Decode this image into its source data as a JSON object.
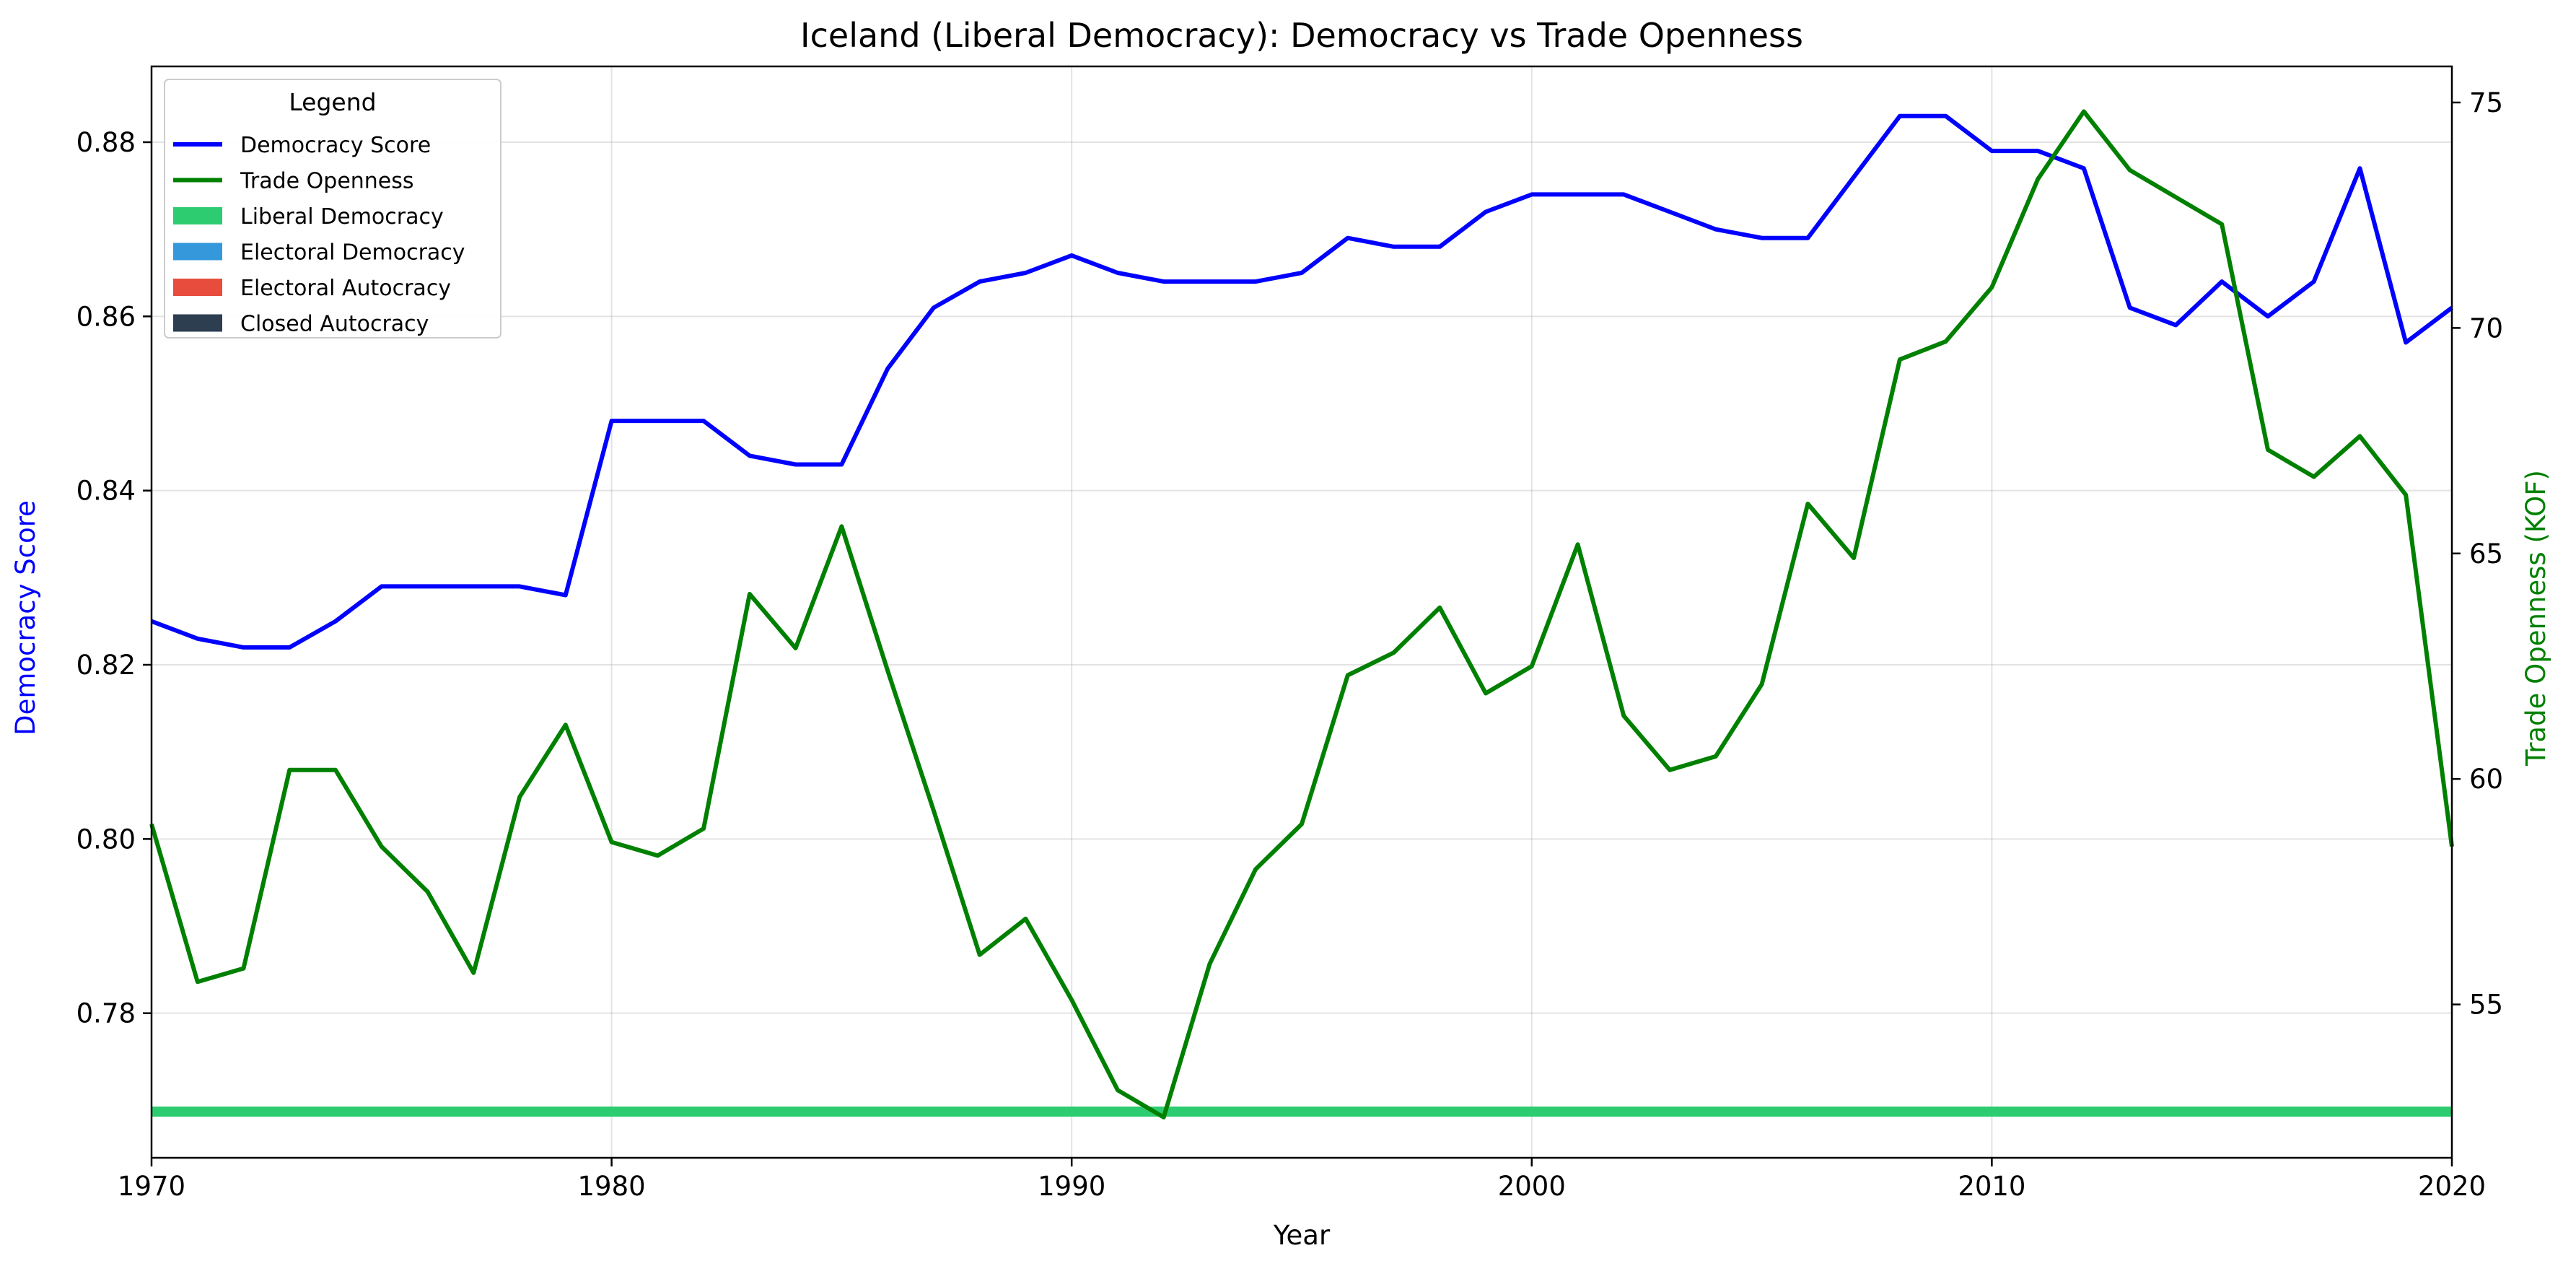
{
  "chart_data": {
    "type": "line",
    "title": "Iceland (Liberal Democracy): Democracy vs Trade Openness",
    "xlabel": "Year",
    "ylabel_left": "Democracy Score",
    "ylabel_right": "Trade Openness (KOF)",
    "xlim": [
      1970,
      2020
    ],
    "ylim_left": [
      0.7634,
      0.8887
    ],
    "ylim_right": [
      51.6,
      75.8
    ],
    "x_ticks": [
      1970,
      1980,
      1990,
      2000,
      2010,
      2020
    ],
    "y_left_ticks": [
      0.78,
      0.8,
      0.82,
      0.84,
      0.86,
      0.88
    ],
    "y_left_tick_labels": [
      "0.78",
      "0.80",
      "0.82",
      "0.84",
      "0.86",
      "0.88"
    ],
    "y_right_ticks": [
      55,
      60,
      65,
      70,
      75
    ],
    "y_right_tick_labels": [
      "55",
      "60",
      "65",
      "70",
      "75"
    ],
    "grid": true,
    "legend_placement": "top-left",
    "legend_title": "Legend",
    "x": [
      1970,
      1971,
      1972,
      1973,
      1974,
      1975,
      1976,
      1977,
      1978,
      1979,
      1980,
      1981,
      1982,
      1983,
      1984,
      1985,
      1986,
      1987,
      1988,
      1989,
      1990,
      1991,
      1992,
      1993,
      1994,
      1995,
      1996,
      1997,
      1998,
      1999,
      2000,
      2001,
      2002,
      2003,
      2004,
      2005,
      2006,
      2007,
      2008,
      2009,
      2010,
      2011,
      2012,
      2013,
      2014,
      2015,
      2016,
      2017,
      2018,
      2019,
      2020
    ],
    "series": [
      {
        "name": "Democracy Score",
        "axis": "left",
        "color": "#0000ff",
        "values": [
          0.825,
          0.823,
          0.822,
          0.822,
          0.825,
          0.829,
          0.829,
          0.829,
          0.829,
          0.828,
          0.848,
          0.848,
          0.848,
          0.844,
          0.843,
          0.843,
          0.854,
          0.861,
          0.864,
          0.865,
          0.867,
          0.865,
          0.864,
          0.864,
          0.864,
          0.865,
          0.869,
          0.868,
          0.868,
          0.872,
          0.874,
          0.874,
          0.874,
          0.872,
          0.87,
          0.869,
          0.869,
          0.876,
          0.883,
          0.883,
          0.879,
          0.879,
          0.877,
          0.861,
          0.859,
          0.864,
          0.86,
          0.864,
          0.877,
          0.857,
          0.861
        ]
      },
      {
        "name": "Trade Openness",
        "axis": "right",
        "color": "#008000",
        "values": [
          59.0,
          55.5,
          55.8,
          60.2,
          60.2,
          58.5,
          57.5,
          55.7,
          59.6,
          61.2,
          58.6,
          58.3,
          58.9,
          64.1,
          62.9,
          65.6,
          62.4,
          59.3,
          56.1,
          56.9,
          55.1,
          53.1,
          52.5,
          55.9,
          58.0,
          59.0,
          62.3,
          62.8,
          63.8,
          61.9,
          62.5,
          65.2,
          61.4,
          60.2,
          60.5,
          62.1,
          66.1,
          64.9,
          69.3,
          69.7,
          70.9,
          73.3,
          74.8,
          73.5,
          72.9,
          72.3,
          67.3,
          66.7,
          67.6,
          66.3,
          58.5
        ]
      }
    ],
    "regime_band": {
      "name": "Liberal Democracy",
      "color": "#2ecc71",
      "x_range": [
        1970,
        2020
      ]
    },
    "legend_entries": [
      {
        "label": "Democracy Score",
        "kind": "line",
        "color": "#0000ff"
      },
      {
        "label": "Trade Openness",
        "kind": "line",
        "color": "#008000"
      },
      {
        "label": "Liberal Democracy",
        "kind": "patch",
        "color": "#2ecc71"
      },
      {
        "label": "Electoral Democracy",
        "kind": "patch",
        "color": "#3498db"
      },
      {
        "label": "Electoral Autocracy",
        "kind": "patch",
        "color": "#e74c3c"
      },
      {
        "label": "Closed Autocracy",
        "kind": "patch",
        "color": "#2c3e50"
      }
    ]
  }
}
